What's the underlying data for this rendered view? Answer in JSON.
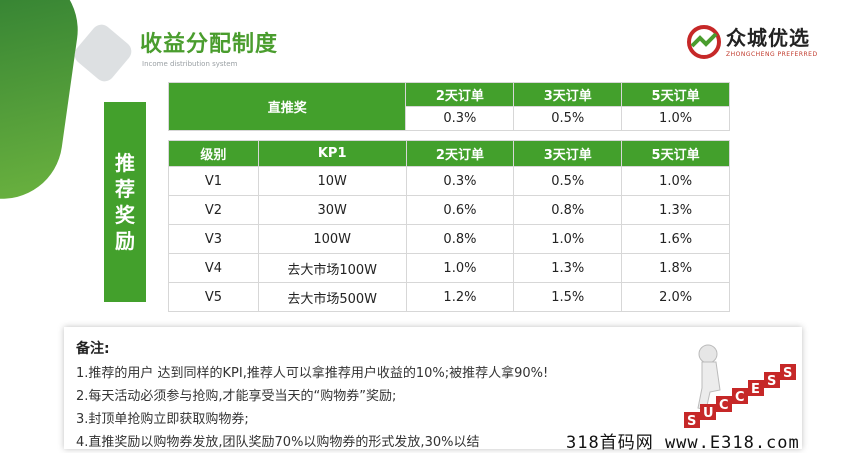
{
  "header": {
    "title": "收益分配制度",
    "subtitle": "Income distribution system"
  },
  "logo": {
    "name": "众城优选",
    "sub": "ZHONGCHENG PREFERRED"
  },
  "side_label": [
    "推",
    "荐",
    "奖",
    "励"
  ],
  "direct_table": {
    "header": [
      "直推奖",
      "2天订单",
      "3天订单",
      "5天订单"
    ],
    "values": [
      "0.3%",
      "0.5%",
      "1.0%"
    ]
  },
  "main_table": {
    "headers": [
      "级别",
      "KP1",
      "2天订单",
      "3天订单",
      "5天订单"
    ],
    "rows": [
      [
        "V1",
        "10W",
        "0.3%",
        "0.5%",
        "1.0%"
      ],
      [
        "V2",
        "30W",
        "0.6%",
        "0.8%",
        "1.3%"
      ],
      [
        "V3",
        "100W",
        "0.8%",
        "1.0%",
        "1.6%"
      ],
      [
        "V4",
        "去大市场100W",
        "1.0%",
        "1.3%",
        "1.8%"
      ],
      [
        "V5",
        "去大市场500W",
        "1.2%",
        "1.5%",
        "2.0%"
      ]
    ]
  },
  "notes": {
    "title": "备注:",
    "lines": [
      "1.推荐的用户 达到同样的KPI,推荐人可以拿推荐用户收益的10%;被推荐人拿90%!",
      "2.每天活动必须参与抢购,才能享受当天的“购物券”奖励;",
      "3.封顶单抢购立即获取购物券;",
      "4.直推奖励以购物券发放,团队奖励70%以购物券的形式发放,30%以结"
    ]
  },
  "success_letters": [
    "S",
    "U",
    "C",
    "C",
    "E",
    "S",
    "S"
  ],
  "watermark": "318首码网 www.E318.com",
  "colors": {
    "green": "#43a02c",
    "title_green": "#4a9d2e",
    "success_red": "#c62828"
  }
}
